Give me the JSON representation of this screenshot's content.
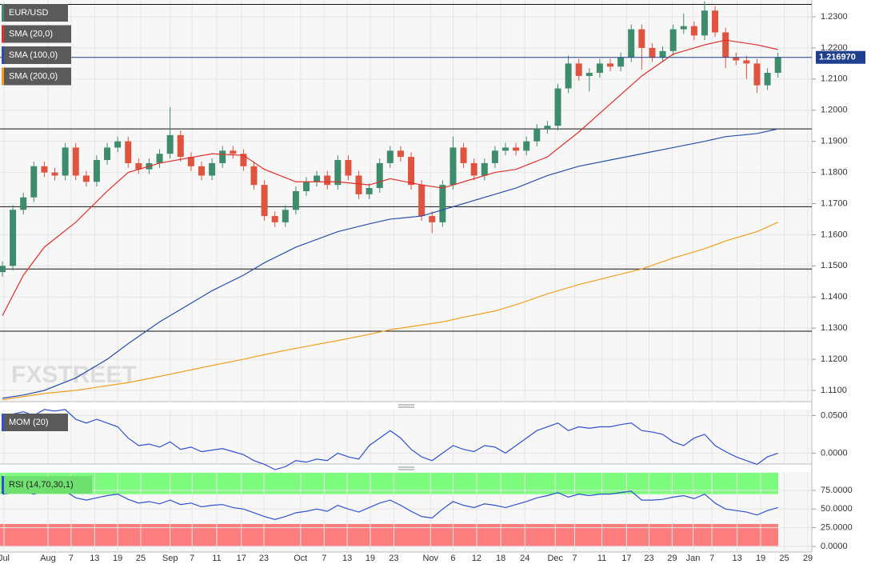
{
  "chart_data": [
    {
      "type": "candlestick",
      "watermark": "FXSTREET",
      "x": [
        0,
        2,
        4,
        6,
        8,
        10,
        12,
        14,
        16,
        18,
        20,
        22,
        24,
        26,
        28,
        30,
        32,
        34,
        36,
        38,
        40,
        42,
        44,
        46,
        48,
        50,
        52,
        54,
        56,
        58,
        60,
        62,
        64,
        66,
        68,
        70,
        72,
        74,
        76,
        78,
        80,
        82,
        84,
        86,
        88,
        90,
        92,
        94,
        96,
        98,
        100,
        102,
        104,
        106,
        108,
        110,
        112,
        114,
        116,
        118,
        120,
        122,
        124,
        126,
        128,
        130,
        132,
        134,
        136,
        138,
        140,
        142,
        144,
        146,
        148
      ],
      "xlim": [
        0,
        154
      ],
      "xticks": [
        {
          "value": 0.3,
          "label": "Jul"
        },
        {
          "value": 8.7,
          "label": "Aug"
        },
        {
          "value": 13.1,
          "label": "7"
        },
        {
          "value": 17.6,
          "label": "13"
        },
        {
          "value": 22,
          "label": "19"
        },
        {
          "value": 26.4,
          "label": "25"
        },
        {
          "value": 32,
          "label": "Sep"
        },
        {
          "value": 36.2,
          "label": "7"
        },
        {
          "value": 40.9,
          "label": "11"
        },
        {
          "value": 45.6,
          "label": "17"
        },
        {
          "value": 49.9,
          "label": "23"
        },
        {
          "value": 56.9,
          "label": "Oct"
        },
        {
          "value": 61.4,
          "label": "7"
        },
        {
          "value": 65.8,
          "label": "13"
        },
        {
          "value": 70.2,
          "label": "19"
        },
        {
          "value": 74.7,
          "label": "23"
        },
        {
          "value": 81.7,
          "label": "Nov"
        },
        {
          "value": 86,
          "label": "6"
        },
        {
          "value": 90.5,
          "label": "12"
        },
        {
          "value": 95.1,
          "label": "18"
        },
        {
          "value": 99.7,
          "label": "24"
        },
        {
          "value": 105.5,
          "label": "Dec"
        },
        {
          "value": 109.2,
          "label": "7"
        },
        {
          "value": 114.4,
          "label": "11"
        },
        {
          "value": 119.1,
          "label": "17"
        },
        {
          "value": 123.4,
          "label": "23"
        },
        {
          "value": 127.8,
          "label": "29"
        },
        {
          "value": 131.8,
          "label": "Jan"
        },
        {
          "value": 135.4,
          "label": "7"
        },
        {
          "value": 140.2,
          "label": "13"
        },
        {
          "value": 144.7,
          "label": "19"
        },
        {
          "value": 149.2,
          "label": "25"
        },
        {
          "value": 153.7,
          "label": "29"
        }
      ],
      "ylim": [
        1.1064,
        1.2354
      ],
      "yticks": [
        {
          "value": 1.11,
          "label": "1.1100"
        },
        {
          "value": 1.12,
          "label": "1.1200"
        },
        {
          "value": 1.13,
          "label": "1.1300"
        },
        {
          "value": 1.14,
          "label": "1.1400"
        },
        {
          "value": 1.15,
          "label": "1.1500"
        },
        {
          "value": 1.16,
          "label": "1.1600"
        },
        {
          "value": 1.17,
          "label": "1.1700"
        },
        {
          "value": 1.18,
          "label": "1.1800"
        },
        {
          "value": 1.19,
          "label": "1.1900"
        },
        {
          "value": 1.2,
          "label": "1.2000"
        },
        {
          "value": 1.21,
          "label": "1.2100"
        },
        {
          "value": 1.22,
          "label": "1.2200"
        },
        {
          "value": 1.23,
          "label": "1.2300"
        }
      ],
      "candles": {
        "name": "EUR/USD",
        "up_color": "#3d8c6b",
        "down_color": "#e0533e",
        "open": [
          1.148,
          1.15,
          1.168,
          1.172,
          1.182,
          1.18,
          1.179,
          1.188,
          1.179,
          1.177,
          1.184,
          1.188,
          1.19,
          1.183,
          1.181,
          1.183,
          1.186,
          1.192,
          1.185,
          1.182,
          1.179,
          1.183,
          1.187,
          1.186,
          1.182,
          1.176,
          1.166,
          1.164,
          1.168,
          1.174,
          1.177,
          1.179,
          1.176,
          1.184,
          1.179,
          1.173,
          1.175,
          1.183,
          1.187,
          1.185,
          1.176,
          1.166,
          1.164,
          1.176,
          1.188,
          1.183,
          1.179,
          1.183,
          1.187,
          1.188,
          1.187,
          1.19,
          1.194,
          1.195,
          1.207,
          1.215,
          1.211,
          1.212,
          1.215,
          1.214,
          1.217,
          1.226,
          1.22,
          1.217,
          1.219,
          1.226,
          1.227,
          1.224,
          1.232,
          1.225,
          1.217,
          1.216,
          1.215,
          1.208,
          1.212
        ],
        "high": [
          1.1515,
          1.1695,
          1.1735,
          1.1835,
          1.1835,
          1.1815,
          1.1895,
          1.1895,
          1.1805,
          1.1855,
          1.1895,
          1.1915,
          1.1915,
          1.1845,
          1.1845,
          1.1875,
          1.201,
          1.1935,
          1.1865,
          1.1835,
          1.1845,
          1.1885,
          1.1885,
          1.1875,
          1.1835,
          1.1775,
          1.1675,
          1.1695,
          1.1755,
          1.1785,
          1.1805,
          1.1805,
          1.1855,
          1.1855,
          1.1805,
          1.1765,
          1.1845,
          1.1885,
          1.1885,
          1.1865,
          1.1775,
          1.1675,
          1.1775,
          1.1915,
          1.1895,
          1.1845,
          1.1845,
          1.1885,
          1.1895,
          1.1895,
          1.1915,
          1.1955,
          1.1965,
          1.2085,
          1.2175,
          1.2165,
          1.2135,
          1.2165,
          1.2165,
          1.2185,
          1.2275,
          1.2275,
          1.2215,
          1.2205,
          1.2275,
          1.231,
          1.2285,
          1.235,
          1.2335,
          1.2265,
          1.2185,
          1.2175,
          1.2165,
          1.2135,
          1.2185
        ],
        "low": [
          1.1465,
          1.1485,
          1.1665,
          1.1705,
          1.1785,
          1.1775,
          1.1775,
          1.1775,
          1.1755,
          1.1755,
          1.1825,
          1.1865,
          1.1815,
          1.1795,
          1.1795,
          1.1815,
          1.1845,
          1.1835,
          1.1805,
          1.1775,
          1.1775,
          1.1815,
          1.1845,
          1.1805,
          1.1745,
          1.1645,
          1.1625,
          1.1625,
          1.1665,
          1.1725,
          1.1755,
          1.1745,
          1.1745,
          1.1775,
          1.1715,
          1.1715,
          1.1735,
          1.1815,
          1.1835,
          1.1745,
          1.1645,
          1.1605,
          1.1625,
          1.1745,
          1.1815,
          1.1775,
          1.1775,
          1.1815,
          1.1855,
          1.1855,
          1.1855,
          1.1885,
          1.1925,
          1.1935,
          1.2055,
          1.2095,
          1.206,
          1.2105,
          1.2125,
          1.2125,
          1.2155,
          1.213,
          1.2155,
          1.2155,
          1.2175,
          1.2245,
          1.2225,
          1.2225,
          1.2235,
          1.2135,
          1.2145,
          1.21,
          1.2055,
          1.2065,
          1.2105
        ],
        "close": [
          1.15,
          1.168,
          1.172,
          1.182,
          1.18,
          1.179,
          1.188,
          1.179,
          1.177,
          1.184,
          1.188,
          1.19,
          1.183,
          1.181,
          1.183,
          1.186,
          1.192,
          1.185,
          1.182,
          1.179,
          1.183,
          1.187,
          1.186,
          1.182,
          1.176,
          1.166,
          1.164,
          1.168,
          1.174,
          1.177,
          1.179,
          1.176,
          1.184,
          1.179,
          1.173,
          1.175,
          1.183,
          1.187,
          1.185,
          1.176,
          1.166,
          1.164,
          1.176,
          1.188,
          1.183,
          1.179,
          1.183,
          1.187,
          1.188,
          1.187,
          1.19,
          1.194,
          1.195,
          1.207,
          1.215,
          1.211,
          1.212,
          1.215,
          1.214,
          1.217,
          1.226,
          1.22,
          1.217,
          1.219,
          1.226,
          1.227,
          1.224,
          1.232,
          1.225,
          1.217,
          1.216,
          1.215,
          1.208,
          1.212,
          1.217
        ]
      },
      "series": [
        {
          "name": "SMA (20,0)",
          "color": "#e0302c",
          "x": [
            0,
            4,
            8,
            14,
            20,
            24,
            30,
            40,
            46,
            50,
            56,
            64,
            70,
            74,
            80,
            84,
            88,
            94,
            98,
            104,
            110,
            116,
            122,
            128,
            134,
            138,
            144,
            148
          ],
          "values": [
            1.134,
            1.147,
            1.156,
            1.164,
            1.174,
            1.18,
            1.183,
            1.186,
            1.1855,
            1.181,
            1.177,
            1.177,
            1.176,
            1.178,
            1.176,
            1.175,
            1.177,
            1.18,
            1.181,
            1.185,
            1.193,
            1.202,
            1.211,
            1.218,
            1.221,
            1.2225,
            1.221,
            1.2195
          ]
        },
        {
          "name": "SMA (100,0)",
          "color": "#2a4fa8",
          "x": [
            0,
            4,
            8,
            14,
            20,
            24,
            30,
            40,
            46,
            50,
            56,
            64,
            70,
            74,
            80,
            84,
            88,
            94,
            98,
            104,
            110,
            116,
            122,
            128,
            134,
            138,
            144,
            148
          ],
          "values": [
            1.1075,
            1.1085,
            1.11,
            1.114,
            1.12,
            1.125,
            1.132,
            1.142,
            1.147,
            1.151,
            1.156,
            1.161,
            1.1635,
            1.165,
            1.166,
            1.168,
            1.17,
            1.173,
            1.175,
            1.179,
            1.182,
            1.184,
            1.186,
            1.188,
            1.19,
            1.1915,
            1.1925,
            1.194
          ]
        },
        {
          "name": "SMA (200,0)",
          "color": "#f0a020",
          "x": [
            0,
            4,
            8,
            14,
            20,
            24,
            30,
            40,
            46,
            50,
            56,
            64,
            70,
            74,
            80,
            84,
            88,
            94,
            98,
            104,
            110,
            116,
            122,
            128,
            134,
            138,
            144,
            148
          ],
          "values": [
            1.107,
            1.108,
            1.109,
            1.11,
            1.1115,
            1.1125,
            1.1145,
            1.118,
            1.12,
            1.1215,
            1.1235,
            1.126,
            1.128,
            1.1295,
            1.131,
            1.132,
            1.1335,
            1.1355,
            1.1375,
            1.141,
            1.144,
            1.1465,
            1.149,
            1.1525,
            1.1555,
            1.158,
            1.161,
            1.164
          ]
        }
      ],
      "hlines": [
        1.234,
        1.194,
        1.169,
        1.149,
        1.129
      ],
      "last_price": {
        "value": 1.21697,
        "label": "1.216970"
      }
    },
    {
      "type": "line",
      "x": [
        0,
        2,
        4,
        6,
        8,
        10,
        12,
        14,
        16,
        18,
        20,
        22,
        24,
        26,
        28,
        30,
        32,
        34,
        36,
        38,
        40,
        42,
        44,
        46,
        48,
        50,
        52,
        54,
        56,
        58,
        60,
        62,
        64,
        66,
        68,
        70,
        72,
        74,
        76,
        78,
        80,
        82,
        84,
        86,
        88,
        90,
        92,
        94,
        96,
        98,
        100,
        102,
        104,
        106,
        108,
        110,
        112,
        114,
        116,
        118,
        120,
        122,
        124,
        126,
        128,
        130,
        132,
        134,
        136,
        138,
        140,
        142,
        144,
        146,
        148
      ],
      "ylim": [
        -0.0145,
        0.0579
      ],
      "yticks": [
        {
          "value": 0,
          "label": "0.0000"
        },
        {
          "value": 0.05,
          "label": "0.0500"
        }
      ],
      "series": [
        {
          "name": "MOM (20)",
          "color": "#3050d0",
          "values": [
            0.05,
            0.052,
            0.055,
            0.05,
            0.058,
            0.056,
            0.058,
            0.045,
            0.04,
            0.045,
            0.04,
            0.035,
            0.02,
            0.01,
            0.012,
            0.008,
            0.015,
            0.005,
            0.008,
            0.002,
            0.004,
            0.006,
            0.002,
            -0.002,
            -0.01,
            -0.015,
            -0.022,
            -0.018,
            -0.01,
            -0.012,
            -0.008,
            -0.01,
            0,
            -0.005,
            -0.008,
            0.01,
            0.02,
            0.03,
            0.02,
            0.005,
            -0.005,
            -0.01,
            0,
            0.01,
            0.005,
            0.002,
            0.01,
            0.008,
            0,
            0.01,
            0.02,
            0.03,
            0.035,
            0.04,
            0.03,
            0.035,
            0.033,
            0.035,
            0.035,
            0.038,
            0.04,
            0.03,
            0.028,
            0.025,
            0.015,
            0.01,
            0.02,
            0.025,
            0.01,
            0.002,
            -0.005,
            -0.01,
            -0.015,
            -0.005,
            0
          ]
        }
      ]
    },
    {
      "type": "line",
      "x": [
        0,
        2,
        4,
        6,
        8,
        10,
        12,
        14,
        16,
        18,
        20,
        22,
        24,
        26,
        28,
        30,
        32,
        34,
        36,
        38,
        40,
        42,
        44,
        46,
        48,
        50,
        52,
        54,
        56,
        58,
        60,
        62,
        64,
        66,
        68,
        70,
        72,
        74,
        76,
        78,
        80,
        82,
        84,
        86,
        88,
        90,
        92,
        94,
        96,
        98,
        100,
        102,
        104,
        106,
        108,
        110,
        112,
        114,
        116,
        118,
        120,
        122,
        124,
        126,
        128,
        130,
        132,
        134,
        136,
        138,
        140,
        142,
        144,
        146,
        148
      ],
      "ylim": [
        -7.5,
        99.6
      ],
      "yticks": [
        {
          "value": 0,
          "label": "0.0000"
        },
        {
          "value": 25,
          "label": "25.0000"
        },
        {
          "value": 50,
          "label": "50.0000"
        },
        {
          "value": 75,
          "label": "75.0000"
        }
      ],
      "overbought": 70,
      "oversold": 30,
      "series": [
        {
          "name": "RSI (14,70,30,1)",
          "color": "#3050d0",
          "values": [
            70,
            72,
            74,
            70,
            75,
            73,
            74,
            65,
            62,
            65,
            68,
            70,
            63,
            58,
            60,
            57,
            62,
            56,
            58,
            53,
            55,
            56,
            52,
            50,
            45,
            40,
            36,
            40,
            45,
            47,
            50,
            47,
            55,
            50,
            46,
            52,
            58,
            62,
            55,
            47,
            40,
            38,
            50,
            60,
            55,
            52,
            57,
            55,
            52,
            56,
            60,
            65,
            68,
            72,
            66,
            70,
            68,
            70,
            70,
            72,
            74,
            62,
            62,
            63,
            66,
            68,
            64,
            70,
            58,
            50,
            48,
            46,
            42,
            48,
            52
          ]
        }
      ]
    }
  ]
}
